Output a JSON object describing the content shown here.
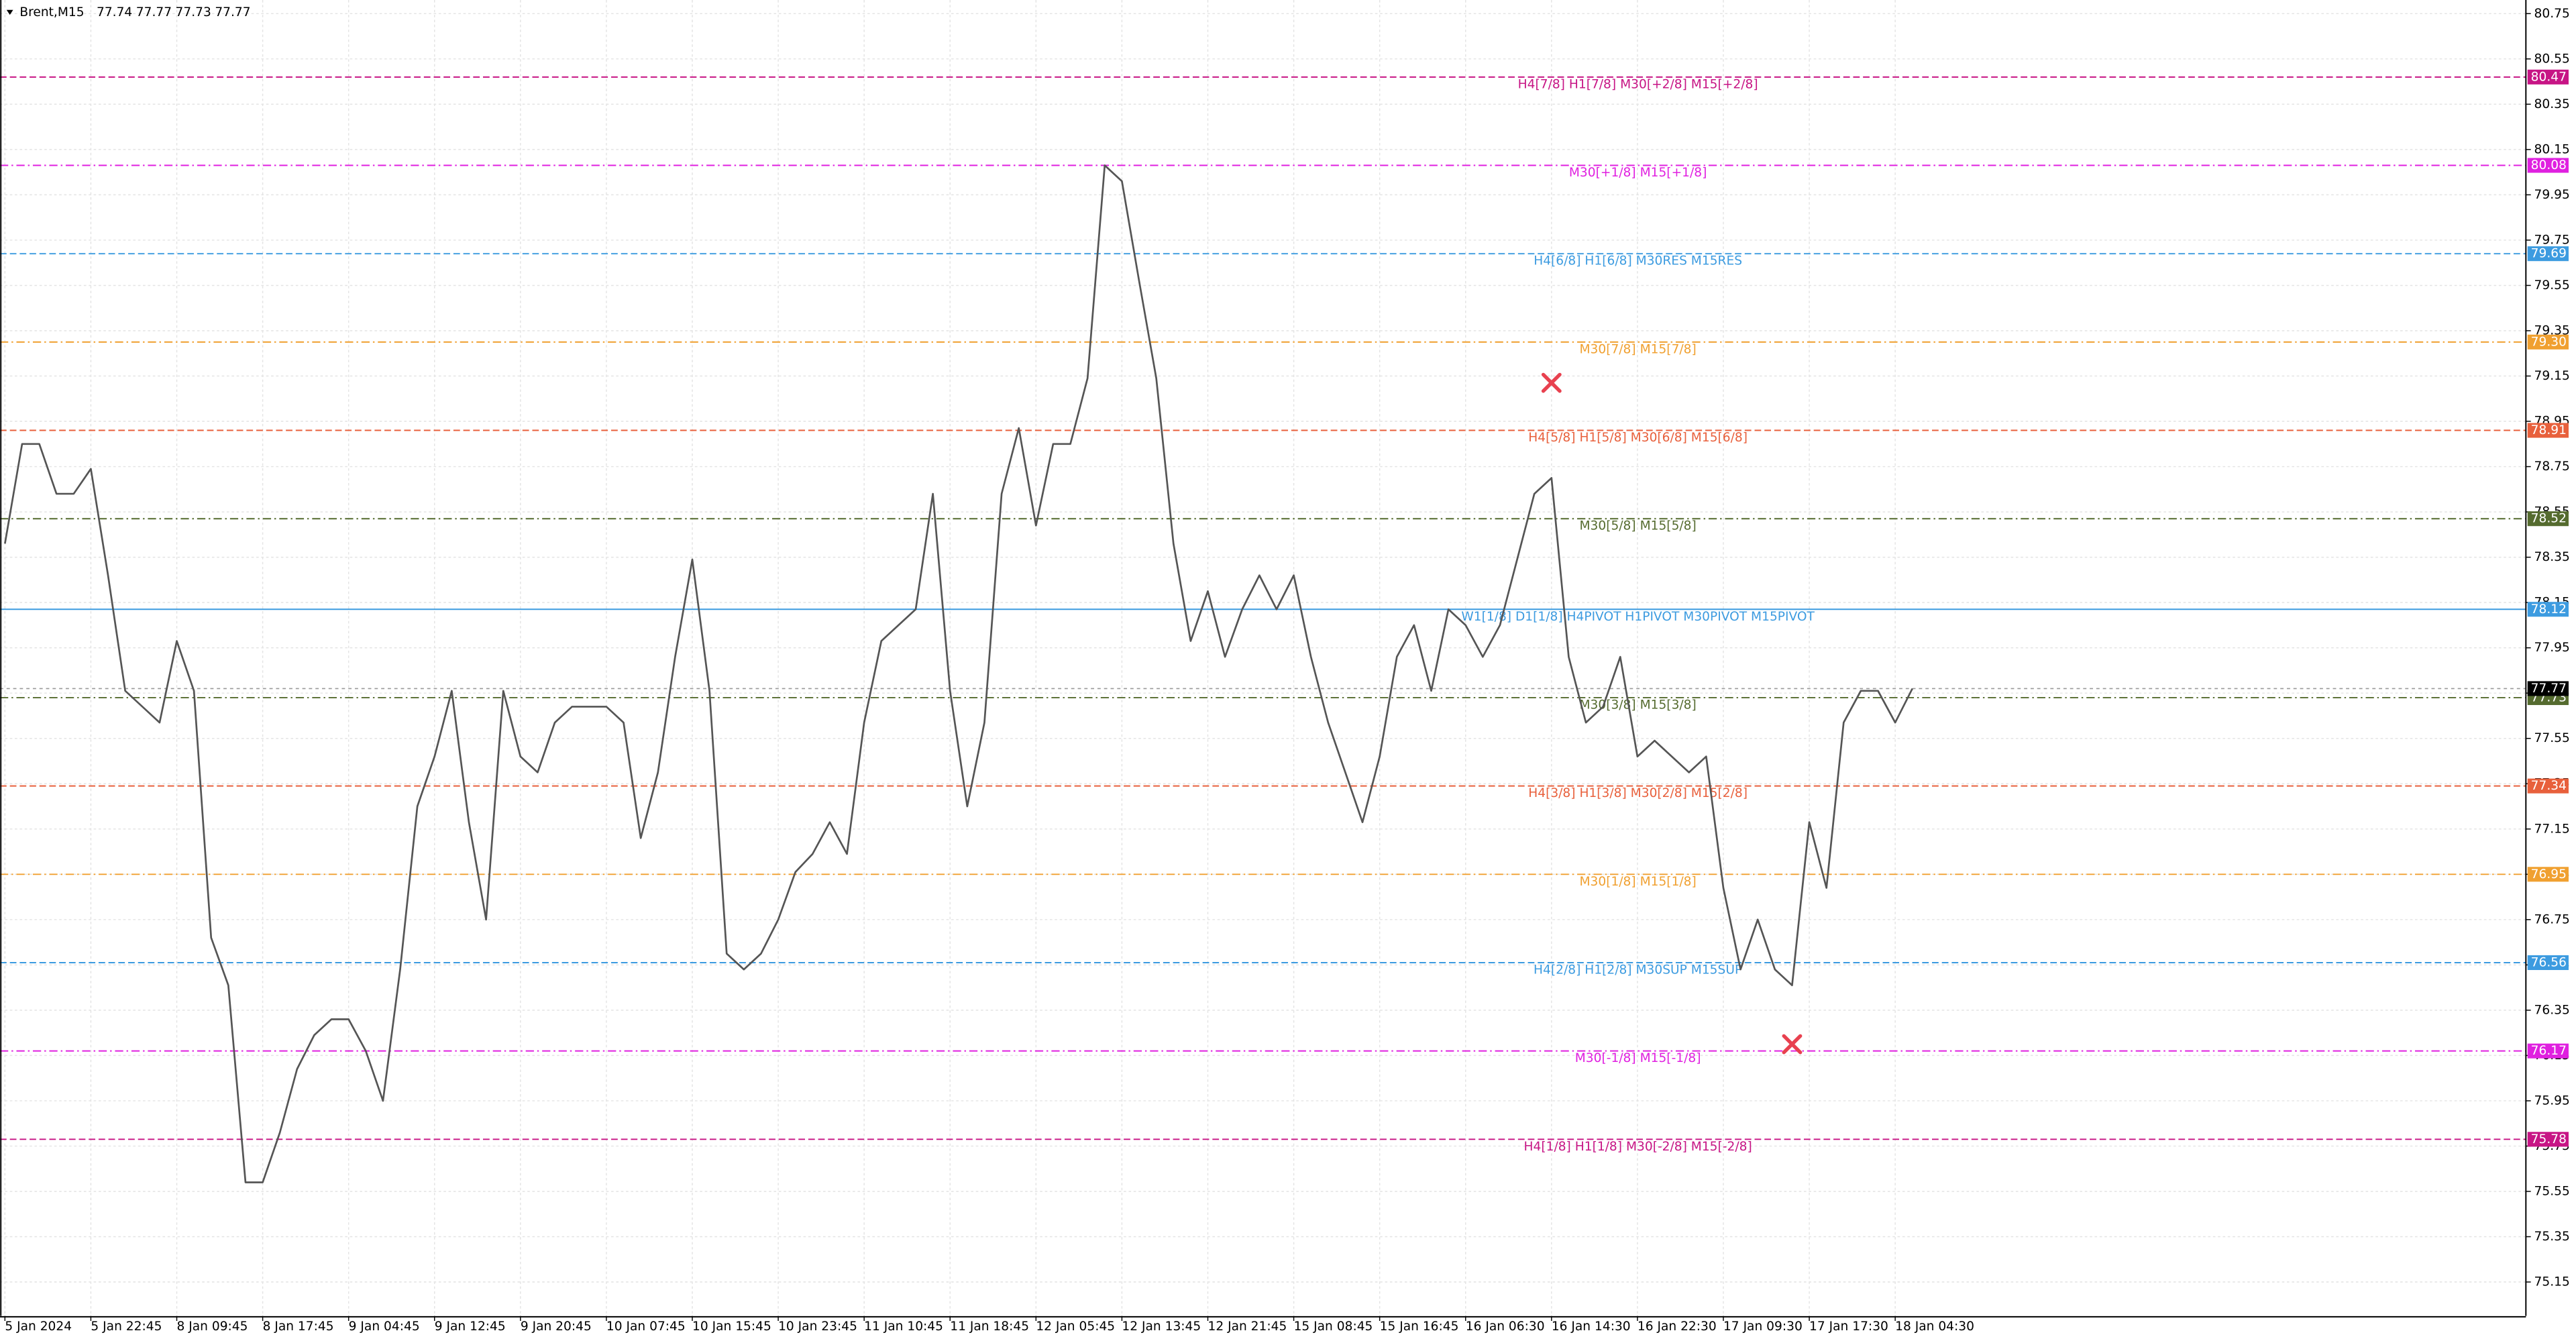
{
  "chart_data": {
    "type": "line",
    "symbol": "Brent,M15",
    "ohlc": [
      77.74,
      77.77,
      77.73,
      77.77
    ],
    "color": "#555555",
    "ylim": [
      75.0,
      80.81
    ],
    "yticks": [
      80.75,
      80.55,
      80.35,
      80.15,
      79.95,
      79.75,
      79.55,
      79.35,
      79.15,
      78.95,
      78.75,
      78.55,
      78.35,
      78.15,
      77.95,
      77.75,
      77.55,
      77.35,
      77.15,
      76.95,
      76.75,
      76.55,
      76.35,
      76.15,
      75.95,
      75.75,
      75.55,
      75.35,
      75.15
    ],
    "grid": true,
    "categories": [
      "5 Jan 2024",
      null,
      null,
      null,
      null,
      "5 Jan 22:45",
      null,
      null,
      null,
      null,
      "8 Jan 09:45",
      null,
      null,
      null,
      null,
      "8 Jan 17:45",
      null,
      null,
      null,
      null,
      "9 Jan 04:45",
      null,
      null,
      null,
      null,
      "9 Jan 12:45",
      null,
      null,
      null,
      null,
      "9 Jan 20:45",
      null,
      null,
      null,
      null,
      "10 Jan 07:45",
      null,
      null,
      null,
      null,
      "10 Jan 15:45",
      null,
      null,
      null,
      null,
      "10 Jan 23:45",
      null,
      null,
      null,
      null,
      "11 Jan 10:45",
      null,
      null,
      null,
      null,
      "11 Jan 18:45",
      null,
      null,
      null,
      null,
      "12 Jan 05:45",
      null,
      null,
      null,
      null,
      "12 Jan 13:45",
      null,
      null,
      null,
      null,
      "12 Jan 21:45",
      null,
      null,
      null,
      null,
      "15 Jan 08:45",
      null,
      null,
      null,
      null,
      "15 Jan 16:45",
      null,
      null,
      null,
      null,
      "16 Jan 06:30",
      null,
      null,
      null,
      null,
      "16 Jan 14:30",
      null,
      null,
      null,
      null,
      "16 Jan 22:30",
      null,
      null,
      null,
      null,
      "17 Jan 09:30",
      null,
      null,
      null,
      null,
      "17 Jan 17:30",
      null,
      null,
      null,
      null,
      "18 Jan 04:30",
      null
    ],
    "values": [
      78.41,
      78.85,
      78.85,
      78.63,
      78.63,
      78.74,
      78.27,
      77.76,
      77.69,
      77.62,
      77.98,
      77.76,
      76.67,
      76.46,
      75.59,
      75.59,
      75.81,
      76.09,
      76.24,
      76.31,
      76.31,
      76.17,
      75.95,
      76.53,
      77.25,
      77.47,
      77.76,
      77.18,
      76.75,
      77.76,
      77.47,
      77.4,
      77.62,
      77.69,
      77.69,
      77.69,
      77.62,
      77.11,
      77.4,
      77.91,
      78.34,
      77.76,
      76.6,
      76.53,
      76.6,
      76.75,
      76.96,
      77.04,
      77.18,
      77.04,
      77.62,
      77.98,
      78.05,
      78.12,
      78.63,
      77.76,
      77.25,
      77.62,
      78.63,
      78.92,
      78.49,
      78.85,
      78.85,
      79.14,
      80.08,
      80.01,
      79.57,
      79.14,
      78.41,
      77.98,
      78.2,
      77.91,
      78.12,
      78.27,
      78.12,
      78.27,
      77.91,
      77.62,
      77.4,
      77.18,
      77.47,
      77.91,
      78.05,
      77.76,
      78.12,
      78.05,
      77.91,
      78.05,
      78.34,
      78.63,
      78.7,
      77.91,
      77.62,
      77.69,
      77.91,
      77.47,
      77.54,
      77.47,
      77.4,
      77.47,
      76.89,
      76.53,
      76.75,
      76.53,
      76.46,
      77.18,
      76.89,
      77.62,
      77.76,
      77.76,
      77.62,
      77.77
    ],
    "levels": [
      {
        "label": "H4[7/8] H1[7/8] M30[+2/8] M15[+2/8]",
        "value": 80.47,
        "tag": "80.47",
        "color": "#c71585",
        "style": "dash"
      },
      {
        "label": "M30[+1/8] M15[+1/8]",
        "value": 80.08,
        "tag": "80.08",
        "color": "#e020e0",
        "style": "dashdot"
      },
      {
        "label": "H4[6/8] H1[6/8] M30RES M15RES",
        "value": 79.69,
        "tag": "79.69",
        "color": "#3c9be0",
        "style": "dash"
      },
      {
        "label": "M30[7/8] M15[7/8]",
        "value": 79.3,
        "tag": "79.30",
        "color": "#f0a030",
        "style": "dashdot"
      },
      {
        "label": "H4[5/8] H1[5/8] M30[6/8] M15[6/8]",
        "value": 78.91,
        "tag": "78.91",
        "color": "#e8603c",
        "style": "dash"
      },
      {
        "label": "M30[5/8] M15[5/8]",
        "value": 78.52,
        "tag": "78.52",
        "color": "#556b2f",
        "style": "dashdot"
      },
      {
        "label": "W1[1/8] D1[1/8] H4PIVOT H1PIVOT M30PIVOT M15PIVOT",
        "value": 78.12,
        "tag": "78.12",
        "color": "#3c9be0",
        "style": "solid"
      },
      {
        "label": "M30[3/8] M15[3/8]",
        "value": 77.73,
        "tag": "77.73",
        "color": "#556b2f",
        "style": "dashdot"
      },
      {
        "label": "H4[3/8] H1[3/8] M30[2/8] M15[2/8]",
        "value": 77.34,
        "tag": "77.34",
        "color": "#e8603c",
        "style": "dash"
      },
      {
        "label": "M30[1/8] M15[1/8]",
        "value": 76.95,
        "tag": "76.95",
        "color": "#f0a030",
        "style": "dashdot"
      },
      {
        "label": "H4[2/8] H1[2/8] M30SUP M15SUP",
        "value": 76.56,
        "tag": "76.56",
        "color": "#3c9be0",
        "style": "dash"
      },
      {
        "label": "M30[-1/8] M15[-1/8]",
        "value": 76.17,
        "tag": "76.17",
        "color": "#e020e0",
        "style": "dashdot"
      },
      {
        "label": "H4[1/8] H1[1/8] M30[-2/8] M15[-2/8]",
        "value": 75.78,
        "tag": "75.78",
        "color": "#c71585",
        "style": "dash"
      }
    ],
    "markers": [
      {
        "index": 90,
        "value": 79.12,
        "color": "#e8414f"
      },
      {
        "index": 104,
        "value": 76.2,
        "color": "#e8414f"
      }
    ]
  }
}
